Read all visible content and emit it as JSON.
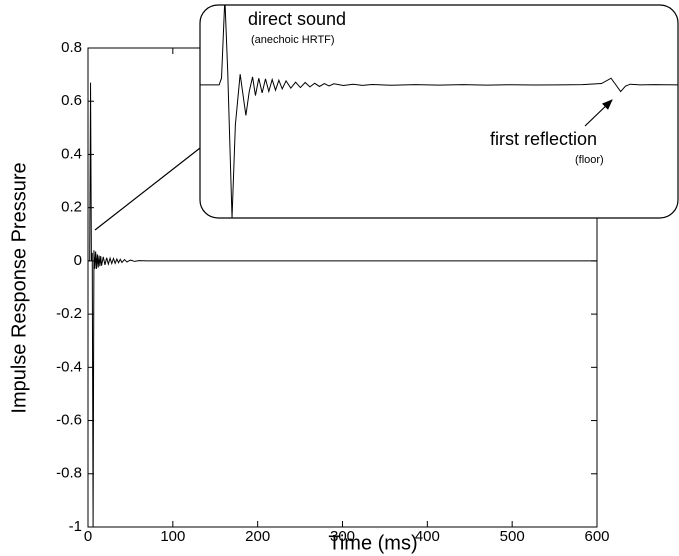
{
  "chart_data": [
    {
      "type": "line",
      "x_label": "Time (ms)",
      "y_label": "Impulse Response Pressure",
      "xlim": [
        0,
        600
      ],
      "xticks": [
        0,
        100,
        200,
        300,
        400,
        500,
        600
      ],
      "ylim": [
        -1,
        0.8
      ],
      "yticks": [
        -1,
        -0.8,
        -0.6,
        -0.4,
        -0.2,
        0,
        0.2,
        0.4,
        0.6,
        0.8
      ],
      "color": "#000000",
      "x": [
        0,
        2,
        3,
        4,
        5,
        6,
        7,
        8,
        9,
        10,
        11,
        12,
        13,
        14,
        15,
        16,
        18,
        20,
        22,
        24,
        26,
        28,
        30,
        32,
        34,
        36,
        38,
        40,
        43,
        46,
        50,
        55,
        60,
        70,
        100,
        600
      ],
      "values": [
        0,
        0,
        0.67,
        0,
        0.03,
        -1,
        0.04,
        -0.03,
        0.035,
        -0.03,
        0.025,
        -0.025,
        0.02,
        -0.02,
        0.018,
        -0.018,
        0.015,
        -0.015,
        0.012,
        -0.012,
        0.01,
        -0.01,
        0.009,
        -0.009,
        0.007,
        -0.007,
        0.006,
        -0.006,
        0.005,
        -0.004,
        0.003,
        -0.002,
        0.001,
        0,
        0,
        0
      ]
    },
    {
      "type": "line",
      "title": "direct sound",
      "subtitle": "(anechoic HRTF)",
      "annotation": "first reflection",
      "annotation_note": "(floor)",
      "xlim": [
        0,
        100
      ],
      "ylim": [
        -1,
        0.6
      ],
      "color": "#000000",
      "x": [
        0,
        4,
        4.5,
        5.2,
        5.8,
        6.7,
        7.4,
        8.4,
        9.6,
        10.3,
        11,
        11.6,
        12.3,
        13,
        13.7,
        14.4,
        15.1,
        15.8,
        16.5,
        17.2,
        18,
        19,
        20,
        21,
        22,
        23,
        24,
        25,
        26,
        27,
        28,
        30,
        32,
        34,
        36,
        40,
        45,
        50,
        55,
        60,
        65,
        70,
        75,
        80,
        84,
        86,
        87,
        88,
        89,
        90,
        92,
        95,
        100
      ],
      "values": [
        0,
        0,
        0.05,
        0.65,
        0.1,
        -1,
        -0.3,
        0.08,
        -0.23,
        -0.05,
        0.06,
        -0.08,
        0.05,
        -0.06,
        0.045,
        -0.05,
        0.04,
        -0.04,
        0.035,
        -0.03,
        0.03,
        -0.025,
        0.02,
        -0.02,
        0.018,
        -0.015,
        0.012,
        -0.012,
        0.01,
        -0.008,
        0.008,
        -0.005,
        0.005,
        -0.004,
        0.003,
        -0.003,
        0.002,
        -0.002,
        0.002,
        -0.002,
        0.001,
        -0.001,
        0,
        0.002,
        0.01,
        0.05,
        0,
        -0.05,
        -0.01,
        0.005,
        0,
        0.002,
        0
      ]
    }
  ]
}
